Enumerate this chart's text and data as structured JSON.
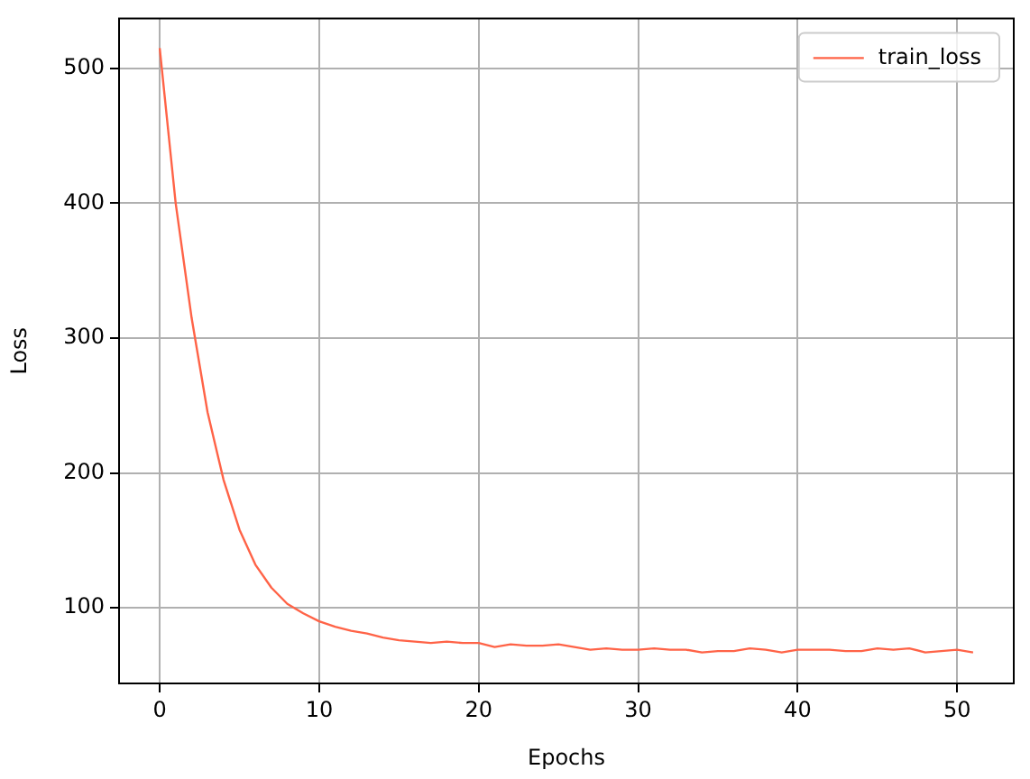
{
  "chart_data": {
    "type": "line",
    "xlabel": "Epochs",
    "ylabel": "Loss",
    "x": [
      0,
      1,
      2,
      3,
      4,
      5,
      6,
      7,
      8,
      9,
      10,
      11,
      12,
      13,
      14,
      15,
      16,
      17,
      18,
      19,
      20,
      21,
      22,
      23,
      24,
      25,
      26,
      27,
      28,
      29,
      30,
      31,
      32,
      33,
      34,
      35,
      36,
      37,
      38,
      39,
      40,
      41,
      42,
      43,
      44,
      45,
      46,
      47,
      48,
      49,
      50,
      51
    ],
    "series": [
      {
        "name": "train_loss",
        "color": "#ff6347",
        "values": [
          515,
          400,
          315,
          245,
          195,
          158,
          132,
          115,
          103,
          96,
          90,
          86,
          83,
          81,
          78,
          76,
          75,
          74,
          75,
          74,
          74,
          71,
          73,
          72,
          72,
          73,
          71,
          69,
          70,
          69,
          69,
          70,
          69,
          69,
          67,
          68,
          68,
          70,
          69,
          67,
          69,
          69,
          69,
          68,
          68,
          70,
          69,
          70,
          67,
          68,
          69,
          67
        ]
      }
    ],
    "xlim": [
      -2.55,
      53.55
    ],
    "ylim": [
      44,
      537
    ],
    "xticks": [
      0,
      10,
      20,
      30,
      40,
      50
    ],
    "yticks": [
      100,
      200,
      300,
      400,
      500
    ],
    "grid": true,
    "legend": "top right",
    "marker": "none",
    "line_style": "solid"
  }
}
